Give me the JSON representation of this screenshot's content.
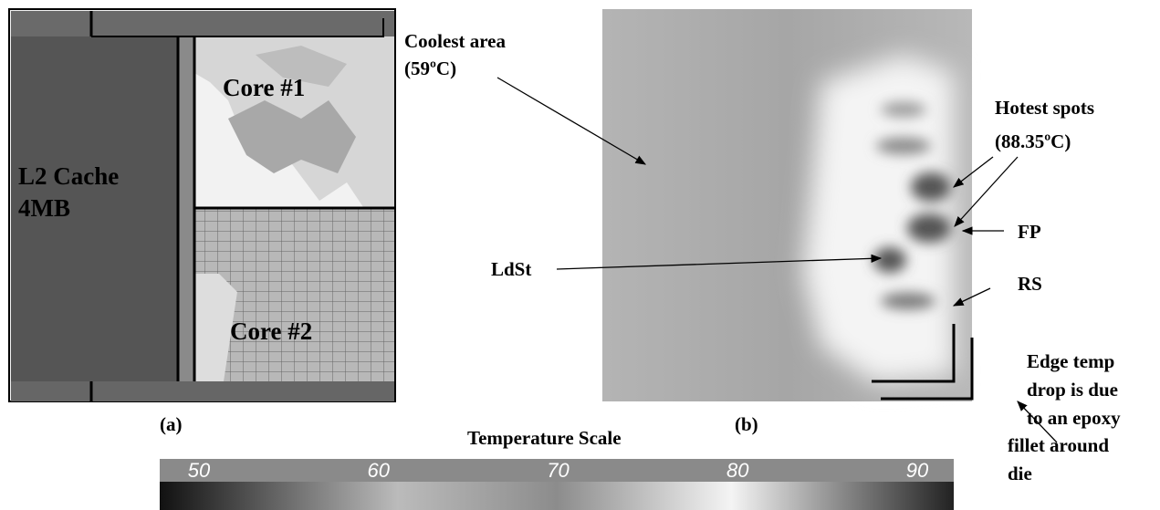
{
  "panel_a": {
    "labels": [
      "L2 Cache",
      "4MB",
      "Core #1",
      "Core #2"
    ],
    "caption": "(a)"
  },
  "panel_b": {
    "caption": "(b)",
    "coolest": [
      "Coolest area",
      "(59ºC)"
    ],
    "hottest": [
      "Hotest spots",
      "(88.35ºC)"
    ],
    "fp": "FP",
    "ldst": "LdSt",
    "rs": "RS",
    "edge": [
      "Edge temp",
      "drop is due",
      "to an epoxy",
      "fillet around",
      "die"
    ]
  },
  "temperature_scale": {
    "title": "Temperature Scale",
    "ticks": [
      50,
      60,
      70,
      80,
      90
    ]
  }
}
